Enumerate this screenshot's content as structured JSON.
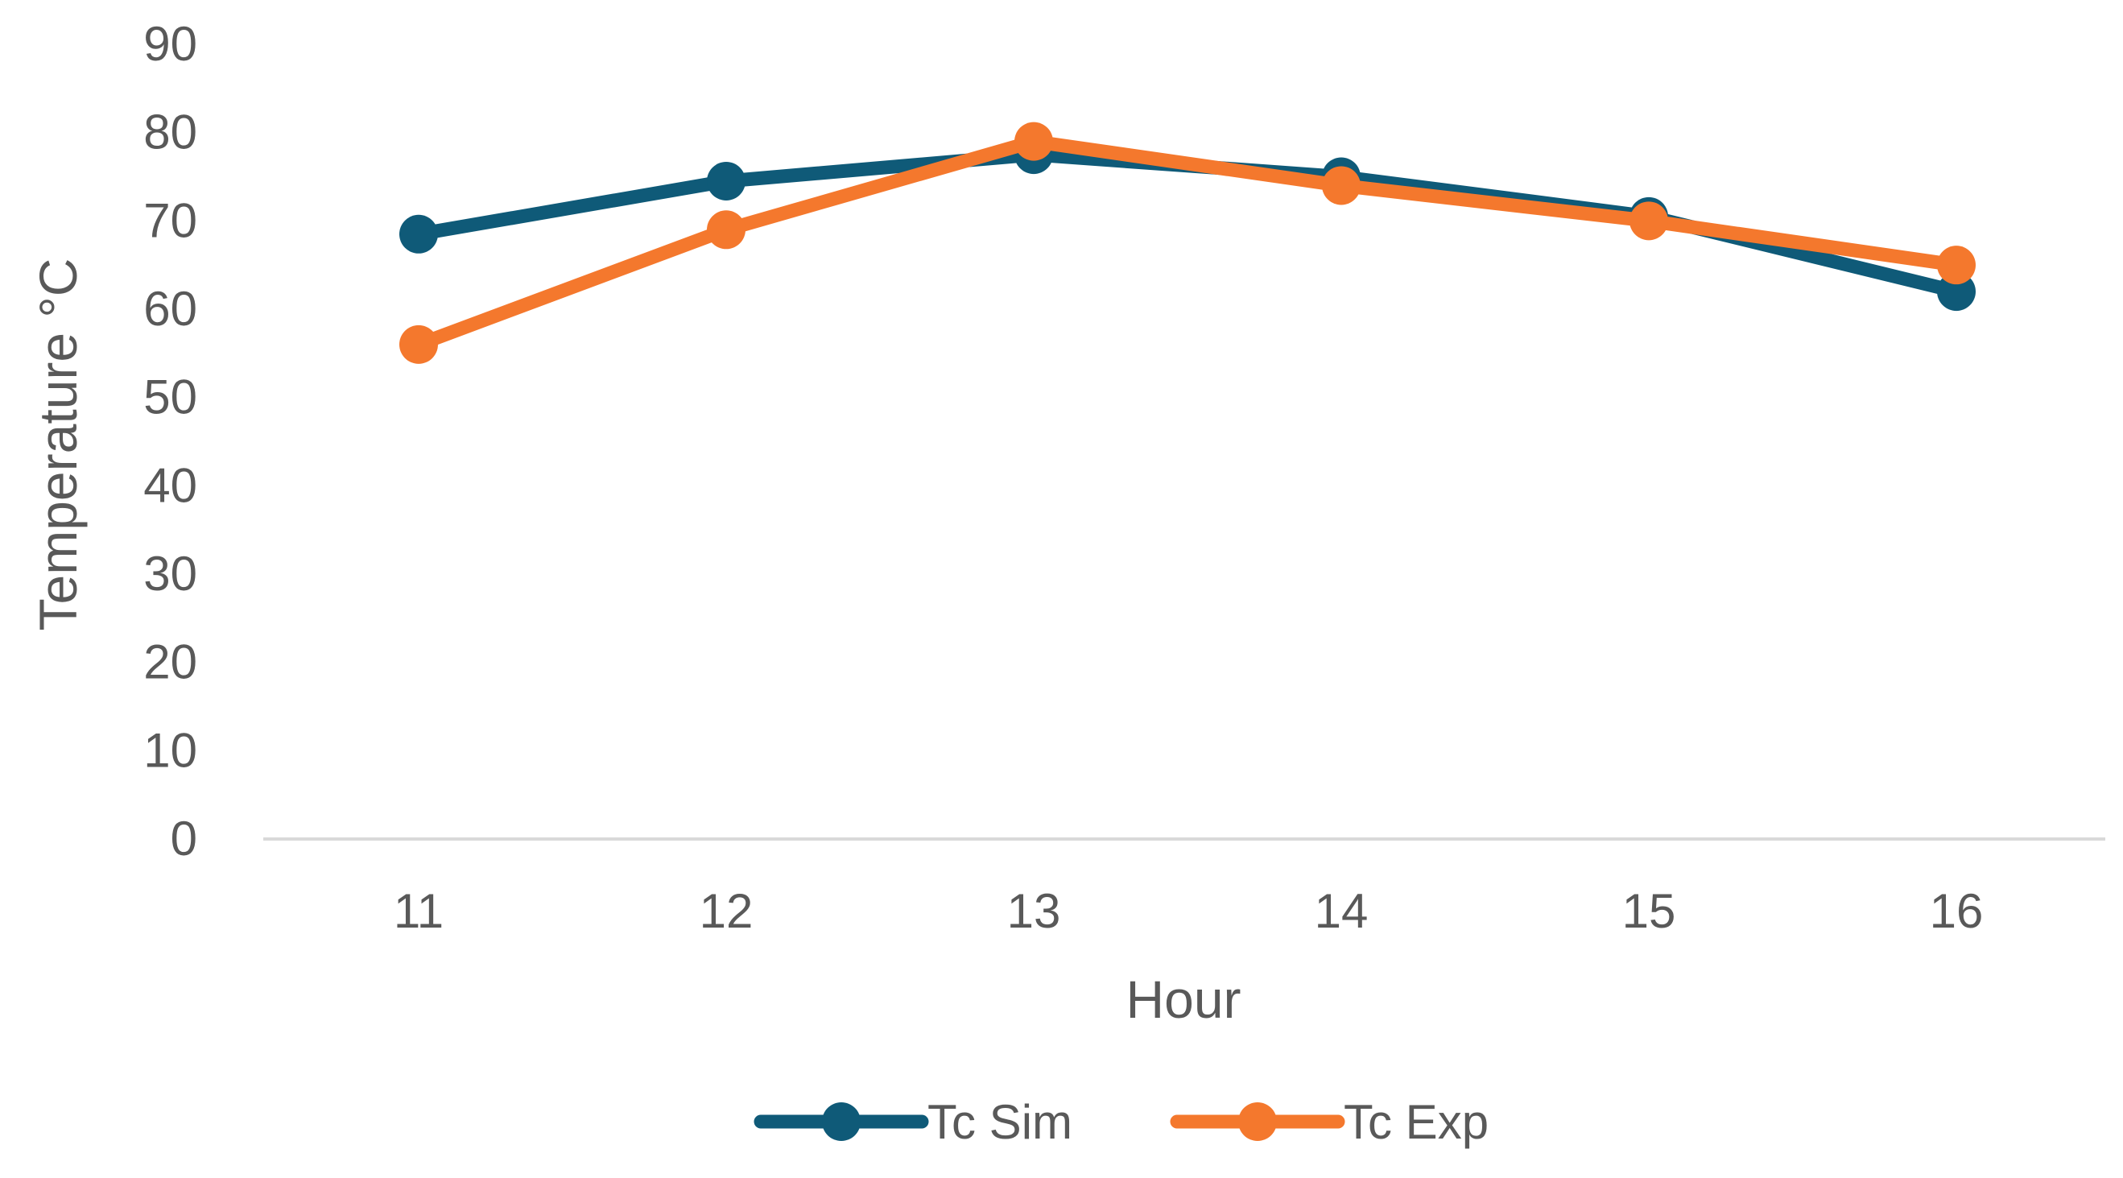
{
  "chart_data": {
    "type": "line",
    "title": "",
    "xlabel": "Hour",
    "ylabel": "Temperature °C",
    "categories": [
      "11",
      "12",
      "13",
      "14",
      "15",
      "16"
    ],
    "ylim": [
      0,
      90
    ],
    "yticks": [
      0,
      10,
      20,
      30,
      40,
      50,
      60,
      70,
      80,
      90
    ],
    "grid": false,
    "legend_position": "bottom",
    "series": [
      {
        "name": "Tc Sim",
        "color": "#0f5a78",
        "values": [
          68.5,
          74.5,
          77.5,
          75,
          70.5,
          62
        ]
      },
      {
        "name": "Tc Exp",
        "color": "#f4782d",
        "values": [
          56,
          69,
          79,
          74,
          70,
          65
        ]
      }
    ]
  }
}
